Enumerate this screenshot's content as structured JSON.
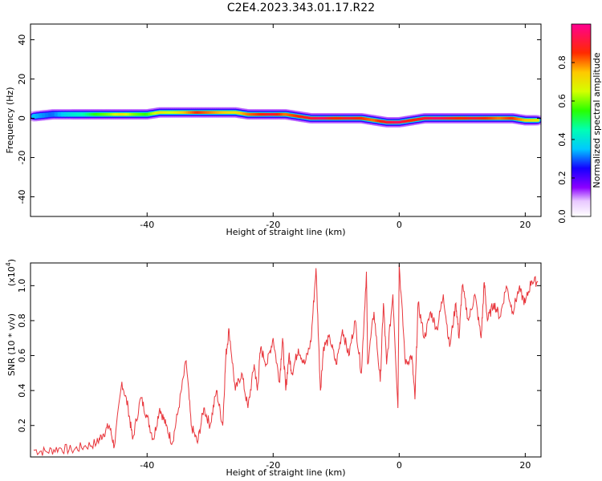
{
  "title": "C2E4.2023.343.01.17.R22",
  "colors": {
    "line": "#e8363c",
    "axis": "#000000",
    "background": "#ffffff"
  },
  "chart_data": [
    {
      "type": "heatmap",
      "xlabel": "Height of straight line (km)",
      "ylabel": "Frequency (Hz)",
      "xlim": [
        -58.5,
        22.5
      ],
      "ylim": [
        -50,
        48
      ],
      "x_ticks": [
        "-40",
        "-20",
        "0",
        "20"
      ],
      "y_ticks": [
        "-40",
        "-20",
        "0",
        "20",
        "40"
      ],
      "ridge": {
        "x": [
          -58,
          -55,
          -52,
          -50,
          -48,
          -46,
          -44,
          -42,
          -40,
          -38,
          -36,
          -34,
          -32,
          -30,
          -28,
          -26,
          -24,
          -22,
          -20,
          -18,
          -16,
          -14,
          -12,
          -10,
          -8,
          -6,
          -4,
          -2,
          0,
          2,
          4,
          6,
          8,
          10,
          12,
          14,
          16,
          18,
          20,
          22
        ],
        "freq": [
          1,
          2,
          2,
          2,
          2,
          2,
          2,
          2,
          2,
          3,
          3,
          3,
          3,
          3,
          3,
          3,
          2,
          2,
          2,
          2,
          1,
          0,
          0,
          0,
          0,
          0,
          -1,
          -2,
          -2,
          -1,
          0,
          0,
          0,
          0,
          0,
          0,
          0,
          0,
          -1,
          -1
        ],
        "amplitude": [
          0.35,
          0.3,
          0.4,
          0.45,
          0.55,
          0.6,
          0.7,
          0.6,
          0.55,
          0.7,
          0.65,
          0.75,
          0.85,
          0.8,
          0.75,
          0.7,
          0.8,
          0.85,
          0.9,
          0.8,
          0.85,
          0.9,
          0.95,
          0.85,
          0.9,
          0.85,
          0.8,
          0.9,
          0.95,
          0.85,
          0.9,
          0.95,
          0.9,
          0.85,
          0.9,
          0.85,
          0.8,
          0.85,
          0.75,
          0.7
        ]
      },
      "colorbar": {
        "label": "Normalized spectral amplitude",
        "range": [
          0,
          1
        ],
        "ticks": [
          "0.0",
          "0.2",
          "0.4",
          "0.6",
          "0.8"
        ]
      }
    },
    {
      "type": "line",
      "xlabel": "Height of straight line (km)",
      "ylabel": "SNR (10 * v/v)",
      "scale_note": "(x10",
      "scale_exp": "4",
      "scale_close": ")",
      "xlim": [
        -58.5,
        22.5
      ],
      "ylim": [
        0.02,
        1.13
      ],
      "x_ticks": [
        "-40",
        "-20",
        "0",
        "20"
      ],
      "y_ticks": [
        "0.2",
        "0.4",
        "0.6",
        "0.8",
        "1.0"
      ],
      "series": [
        {
          "x": [
            -58,
            -56,
            -54,
            -52,
            -50,
            -48,
            -47,
            -46,
            -45.2,
            -44,
            -43,
            -42.3,
            -41,
            -40,
            -39,
            -38,
            -37,
            -36,
            -35,
            -33.8,
            -33,
            -32,
            -31,
            -30,
            -29,
            -28,
            -27.5,
            -27,
            -26,
            -25,
            -24,
            -23,
            -22.5,
            -22,
            -21,
            -20,
            -19,
            -18.5,
            -18,
            -17.5,
            -17,
            -16,
            -15,
            -14,
            -13.2,
            -12.5,
            -12,
            -11,
            -10,
            -9,
            -8,
            -7,
            -6,
            -5.2,
            -5,
            -4,
            -3,
            -2.5,
            -2,
            -1,
            -0.2,
            0,
            1,
            2,
            2.5,
            3,
            4,
            5,
            6,
            7,
            8,
            9,
            9.5,
            10,
            11,
            12,
            13,
            13.5,
            14,
            15,
            16,
            17,
            18,
            19,
            20,
            21,
            22
          ],
          "values": [
            0.06,
            0.05,
            0.07,
            0.06,
            0.08,
            0.1,
            0.15,
            0.2,
            0.08,
            0.45,
            0.3,
            0.12,
            0.36,
            0.25,
            0.12,
            0.3,
            0.2,
            0.1,
            0.3,
            0.57,
            0.2,
            0.1,
            0.3,
            0.2,
            0.4,
            0.2,
            0.6,
            0.75,
            0.4,
            0.5,
            0.3,
            0.55,
            0.4,
            0.64,
            0.55,
            0.7,
            0.45,
            0.7,
            0.4,
            0.6,
            0.5,
            0.64,
            0.55,
            0.68,
            1.1,
            0.4,
            0.65,
            0.7,
            0.55,
            0.75,
            0.6,
            0.8,
            0.5,
            1.08,
            0.55,
            0.85,
            0.45,
            0.9,
            0.55,
            0.95,
            0.3,
            1.12,
            0.55,
            0.6,
            0.35,
            0.9,
            0.7,
            0.85,
            0.75,
            0.95,
            0.65,
            0.9,
            0.7,
            1.0,
            0.8,
            0.95,
            0.7,
            1.02,
            0.8,
            0.9,
            0.82,
            1.0,
            0.85,
            0.98,
            0.9,
            1.03,
            1.02
          ]
        }
      ]
    }
  ]
}
